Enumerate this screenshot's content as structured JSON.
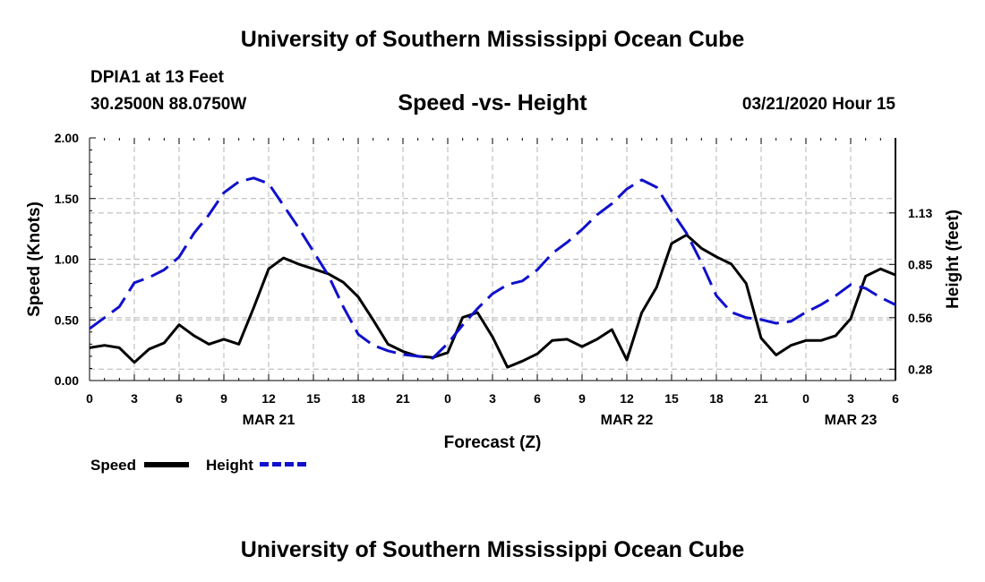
{
  "header": {
    "title": "University of Southern Mississippi Ocean Cube",
    "station": "DPIA1 at 13 Feet",
    "coords": "30.2500N 88.0750W",
    "chart_title": "Speed -vs- Height",
    "datetime": "03/21/2020 Hour 15"
  },
  "footer": {
    "title": "University of Southern Mississippi Ocean Cube"
  },
  "legend": {
    "speed_label": "Speed",
    "height_label": "Height"
  },
  "colors": {
    "speed": "#000000",
    "height": "#1010cc",
    "grid": "#b4b4b4"
  },
  "chart_data": {
    "type": "line",
    "title": "Speed -vs- Height",
    "xlabel": "Forecast (Z)",
    "ylabel": "Speed (Knots)",
    "y2label": "Height (feet)",
    "xlim": [
      0,
      54
    ],
    "ylim": [
      0,
      2
    ],
    "y2lim": [
      0.2181,
      1.5383
    ],
    "x_ticks": [
      0,
      3,
      6,
      9,
      12,
      15,
      18,
      21,
      24,
      27,
      30,
      33,
      36,
      39,
      42,
      45,
      48,
      51,
      54
    ],
    "x_tick_labels": [
      "0",
      "3",
      "6",
      "9",
      "12",
      "15",
      "18",
      "21",
      "0",
      "3",
      "6",
      "9",
      "12",
      "15",
      "18",
      "21",
      "0",
      "3",
      "6"
    ],
    "date_labels": [
      {
        "x": 12,
        "label": "MAR 21"
      },
      {
        "x": 36,
        "label": "MAR 22"
      },
      {
        "x": 51,
        "label": "MAR 23"
      }
    ],
    "y_ticks": [
      0.0,
      0.5,
      1.0,
      1.5,
      2.0
    ],
    "y_tick_labels": [
      "0.00",
      "0.50",
      "1.00",
      "1.50",
      "2.00"
    ],
    "y2_ticks": [
      0.28,
      0.56,
      0.85,
      1.13
    ],
    "y2_tick_labels": [
      "0.28",
      "0.56",
      "0.85",
      "1.13"
    ],
    "grid": true,
    "series": [
      {
        "name": "Speed",
        "axis": "left",
        "style": "solid",
        "points": [
          [
            0,
            0.27
          ],
          [
            1,
            0.29
          ],
          [
            2,
            0.27
          ],
          [
            3,
            0.15
          ],
          [
            4,
            0.26
          ],
          [
            5,
            0.31
          ],
          [
            6,
            0.46
          ],
          [
            7,
            0.37
          ],
          [
            8,
            0.3
          ],
          [
            9,
            0.34
          ],
          [
            10,
            0.3
          ],
          [
            11,
            0.6
          ],
          [
            12,
            0.92
          ],
          [
            13,
            1.01
          ],
          [
            14,
            0.96
          ],
          [
            15,
            0.92
          ],
          [
            16,
            0.88
          ],
          [
            17,
            0.81
          ],
          [
            18,
            0.69
          ],
          [
            19,
            0.5
          ],
          [
            20,
            0.3
          ],
          [
            21,
            0.24
          ],
          [
            22,
            0.2
          ],
          [
            23,
            0.19
          ],
          [
            24,
            0.23
          ],
          [
            25,
            0.52
          ],
          [
            26,
            0.56
          ],
          [
            27,
            0.36
          ],
          [
            28,
            0.11
          ],
          [
            29,
            0.16
          ],
          [
            30,
            0.22
          ],
          [
            31,
            0.33
          ],
          [
            32,
            0.34
          ],
          [
            33,
            0.28
          ],
          [
            34,
            0.34
          ],
          [
            35,
            0.42
          ],
          [
            36,
            0.17
          ],
          [
            37,
            0.56
          ],
          [
            38,
            0.77
          ],
          [
            39,
            1.13
          ],
          [
            40,
            1.2
          ],
          [
            41,
            1.09
          ],
          [
            42,
            1.02
          ],
          [
            43,
            0.96
          ],
          [
            44,
            0.8
          ],
          [
            45,
            0.35
          ],
          [
            46,
            0.21
          ],
          [
            47,
            0.29
          ],
          [
            48,
            0.33
          ],
          [
            49,
            0.33
          ],
          [
            50,
            0.37
          ],
          [
            51,
            0.51
          ],
          [
            52,
            0.86
          ],
          [
            53,
            0.92
          ],
          [
            54,
            0.87
          ]
        ]
      },
      {
        "name": "Height",
        "axis": "right",
        "style": "dashed",
        "points": [
          [
            0,
            0.5
          ],
          [
            1,
            0.56
          ],
          [
            2,
            0.62
          ],
          [
            3,
            0.75
          ],
          [
            4,
            0.78
          ],
          [
            5,
            0.82
          ],
          [
            6,
            0.89
          ],
          [
            7,
            1.02
          ],
          [
            8,
            1.12
          ],
          [
            9,
            1.24
          ],
          [
            10,
            1.3
          ],
          [
            11,
            1.32
          ],
          [
            12,
            1.29
          ],
          [
            13,
            1.17
          ],
          [
            14,
            1.05
          ],
          [
            15,
            0.92
          ],
          [
            16,
            0.79
          ],
          [
            17,
            0.62
          ],
          [
            18,
            0.47
          ],
          [
            19,
            0.41
          ],
          [
            20,
            0.38
          ],
          [
            21,
            0.36
          ],
          [
            22,
            0.35
          ],
          [
            23,
            0.34
          ],
          [
            24,
            0.42
          ],
          [
            25,
            0.52
          ],
          [
            26,
            0.61
          ],
          [
            27,
            0.69
          ],
          [
            28,
            0.74
          ],
          [
            29,
            0.76
          ],
          [
            30,
            0.82
          ],
          [
            31,
            0.91
          ],
          [
            32,
            0.97
          ],
          [
            33,
            1.04
          ],
          [
            34,
            1.12
          ],
          [
            35,
            1.18
          ],
          [
            36,
            1.26
          ],
          [
            37,
            1.31
          ],
          [
            38,
            1.27
          ],
          [
            39,
            1.14
          ],
          [
            40,
            1.02
          ],
          [
            41,
            0.86
          ],
          [
            42,
            0.68
          ],
          [
            43,
            0.59
          ],
          [
            44,
            0.56
          ],
          [
            45,
            0.55
          ],
          [
            46,
            0.53
          ],
          [
            47,
            0.54
          ],
          [
            48,
            0.59
          ],
          [
            49,
            0.63
          ],
          [
            50,
            0.68
          ],
          [
            51,
            0.74
          ],
          [
            52,
            0.72
          ],
          [
            53,
            0.67
          ],
          [
            54,
            0.63
          ]
        ]
      }
    ]
  }
}
